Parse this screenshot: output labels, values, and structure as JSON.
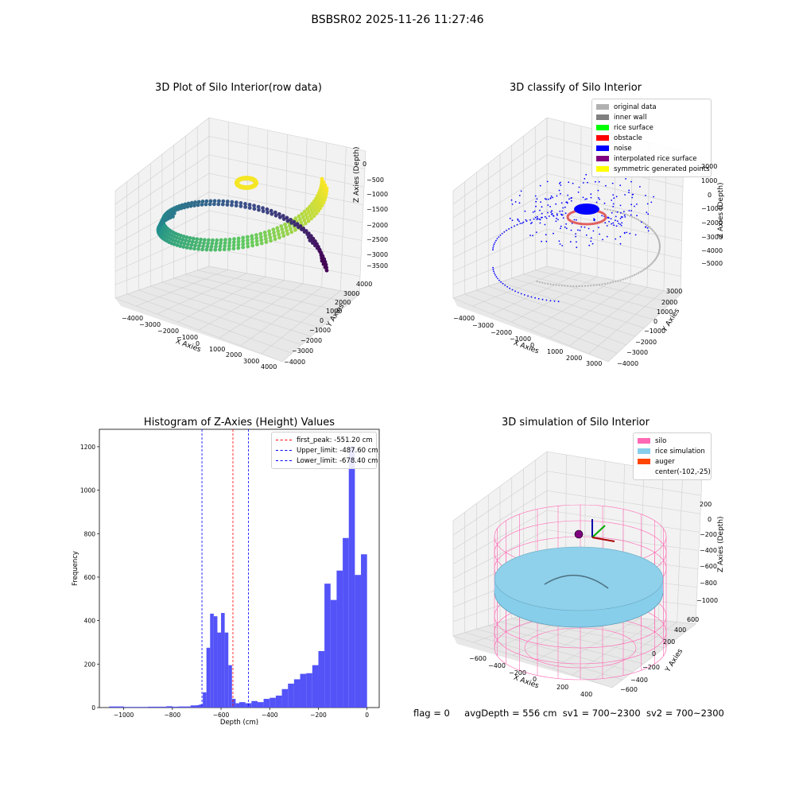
{
  "suptitle": "BSBSR02 2025-11-26 11:27:46",
  "footer": {
    "flag": "flag = 0",
    "avg_depth": "avgDepth = 556 cm",
    "sv1": "sv1 = 700~2300",
    "sv2": "sv2 = 700~2300"
  },
  "colors": {
    "hist_bar": "#5050f8",
    "first_peak": "#ff0000",
    "limits": "#0000ff",
    "silo": "#ff69b4",
    "rice_simulation": "#87ceeb",
    "auger": "#ff4500"
  },
  "chart_data": [
    {
      "type": "scatter3d",
      "title": "3D Plot of Silo Interior(row data)",
      "xlabel": "X Axies",
      "ylabel": "Y Axies",
      "zlabel": "Z Axies (Depth)",
      "x_ticks": [
        "−4000",
        "−3000",
        "−2000",
        "−1000",
        "0",
        "1000",
        "2000",
        "3000",
        "4000"
      ],
      "y_ticks": [
        "−4000",
        "−3000",
        "−2000",
        "−1000",
        "0",
        "1000",
        "2000",
        "3000",
        "4000"
      ],
      "z_ticks": [
        "0",
        "−500",
        "−1000",
        "−1500",
        "−2000",
        "−2500",
        "−3000",
        "−3500"
      ],
      "colormap": "viridis (colored by depth)"
    },
    {
      "type": "scatter3d",
      "title": "3D classify of Silo Interior",
      "xlabel": "X Axies",
      "ylabel": "Y Axies",
      "zlabel": "Z Axies (Depth)",
      "x_ticks": [
        "−4000",
        "−3000",
        "−2000",
        "−1000",
        "0",
        "1000",
        "2000",
        "3000"
      ],
      "y_ticks": [
        "−4000",
        "−3000",
        "−2000",
        "−1000",
        "0",
        "1000",
        "2000",
        "3000"
      ],
      "z_ticks": [
        "2000",
        "1000",
        "0",
        "−1000",
        "−2000",
        "−3000",
        "−4000",
        "−5000"
      ],
      "legend": [
        {
          "label": "original data",
          "color": "#b0b0b0"
        },
        {
          "label": "inner wall",
          "color": "#808080"
        },
        {
          "label": "rice surface",
          "color": "#00ff00"
        },
        {
          "label": "obstacle",
          "color": "#ff0000"
        },
        {
          "label": "noise",
          "color": "#0000ff"
        },
        {
          "label": "interpolated rice surface",
          "color": "#800080"
        },
        {
          "label": "symmetric generated points",
          "color": "#ffff00"
        }
      ]
    },
    {
      "type": "bar",
      "title": "Histogram of Z-Axies (Height) Values",
      "xlabel": "Depth (cm)",
      "ylabel": "Frequency",
      "xlim": [
        -1100,
        50
      ],
      "ylim": [
        0,
        1280
      ],
      "x_ticks": [
        -1000,
        -800,
        -600,
        -400,
        -200,
        0
      ],
      "y_ticks": [
        0,
        200,
        400,
        600,
        800,
        1000,
        1200
      ],
      "bin_width": 25,
      "bins": [
        {
          "x": -1060,
          "value": 5
        },
        {
          "x": -1000,
          "value": 3
        },
        {
          "x": -975,
          "value": 3
        },
        {
          "x": -950,
          "value": 3
        },
        {
          "x": -925,
          "value": 3
        },
        {
          "x": -900,
          "value": 4
        },
        {
          "x": -875,
          "value": 4
        },
        {
          "x": -850,
          "value": 4
        },
        {
          "x": -825,
          "value": 6
        },
        {
          "x": -800,
          "value": 4
        },
        {
          "x": -775,
          "value": 5
        },
        {
          "x": -750,
          "value": 5
        },
        {
          "x": -725,
          "value": 10
        },
        {
          "x": -700,
          "value": 11
        },
        {
          "x": -690,
          "value": 14
        },
        {
          "x": -675,
          "value": 70
        },
        {
          "x": -660,
          "value": 275
        },
        {
          "x": -645,
          "value": 432
        },
        {
          "x": -630,
          "value": 420
        },
        {
          "x": -615,
          "value": 345
        },
        {
          "x": -600,
          "value": 435
        },
        {
          "x": -585,
          "value": 345
        },
        {
          "x": -570,
          "value": 195
        },
        {
          "x": -555,
          "value": 40
        },
        {
          "x": -540,
          "value": 20
        },
        {
          "x": -525,
          "value": 25
        },
        {
          "x": -500,
          "value": 20
        },
        {
          "x": -475,
          "value": 30
        },
        {
          "x": -450,
          "value": 25
        },
        {
          "x": -425,
          "value": 40
        },
        {
          "x": -400,
          "value": 45
        },
        {
          "x": -375,
          "value": 55
        },
        {
          "x": -350,
          "value": 85
        },
        {
          "x": -325,
          "value": 110
        },
        {
          "x": -300,
          "value": 130
        },
        {
          "x": -275,
          "value": 155
        },
        {
          "x": -250,
          "value": 158
        },
        {
          "x": -225,
          "value": 195
        },
        {
          "x": -200,
          "value": 260
        },
        {
          "x": -175,
          "value": 570
        },
        {
          "x": -150,
          "value": 495
        },
        {
          "x": -125,
          "value": 630
        },
        {
          "x": -100,
          "value": 780
        },
        {
          "x": -75,
          "value": 1200
        },
        {
          "x": -50,
          "value": 610
        },
        {
          "x": -25,
          "value": 705
        }
      ],
      "vlines": [
        {
          "label": "first_peak: -551.20 cm",
          "x": -551.2,
          "color": "#ff0000"
        },
        {
          "label": "Upper_limit: -487.60 cm",
          "x": -487.6,
          "color": "#0000ff"
        },
        {
          "label": "Lower_limit: -678.40 cm",
          "x": -678.4,
          "color": "#0000ff"
        }
      ]
    },
    {
      "type": "surface3d",
      "title": "3D simulation of Silo Interior",
      "xlabel": "X Axies",
      "ylabel": "Y Axies",
      "zlabel": "Z Axies (Depth)",
      "x_ticks": [
        "−600",
        "−400",
        "−200",
        "0",
        "200",
        "400"
      ],
      "y_ticks": [
        "−600",
        "−400",
        "−200",
        "0",
        "200",
        "400",
        "600"
      ],
      "z_ticks": [
        "200",
        "0",
        "−200",
        "−400",
        "−600",
        "−800",
        "−1000"
      ],
      "legend": [
        {
          "label": "silo",
          "color": "#ff69b4"
        },
        {
          "label": "rice simulation",
          "color": "#87ceeb"
        },
        {
          "label": "auger",
          "color": "#ff4500"
        },
        {
          "label": "center(-102,-25)",
          "color": null
        }
      ]
    }
  ]
}
